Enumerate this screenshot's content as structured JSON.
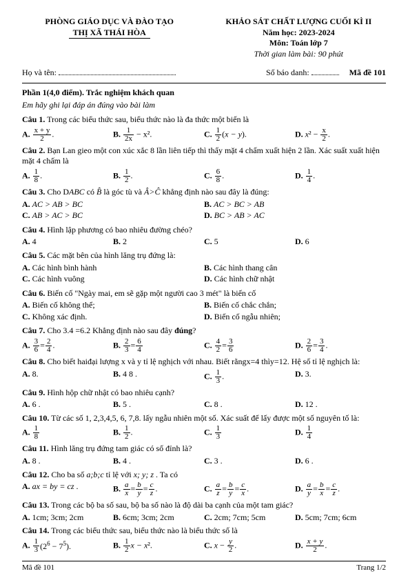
{
  "header": {
    "left1": "PHÒNG GIÁO DỤC VÀ ĐÀO TẠO",
    "left2": "THỊ XÃ THÁI HÒA",
    "right1": "KHẢO SÁT CHẤT LƯỢNG  CUỐI KÌ II",
    "right2": "Năm học: 2023-2024",
    "right3": "Môn: Toán lớp 7",
    "right4": "Thời gian làm bài: 90 phút"
  },
  "info": {
    "name_label": "Họ và tên:",
    "sbd_label": "Số báo danh:",
    "made_label": "Mã đề 101"
  },
  "section": {
    "title": "Phần 1(4,0 điểm). Trắc nghiệm khách quan",
    "sub": "Em hãy ghi lại đáp án đúng vào bài làm"
  },
  "q1": {
    "text": "Câu 1. Trong các biểu thức sau, biểu thức nào là đa thức một biến là",
    "a_prefix": "A.",
    "b_prefix": "B.",
    "c_prefix": "C.",
    "d_prefix": "D.",
    "a": {
      "n": "x + y",
      "d": "2"
    },
    "b": {
      "n": "1",
      "d": "2x",
      "suffix": " − x²."
    },
    "c": {
      "n": "1",
      "d": "2"
    },
    "d": {
      "n": "x",
      "d": "2"
    }
  },
  "q2": {
    "text": "Câu 2. Bạn Lan gieo một con xúc xắc 8 lần liên tiếp thì thấy mặt  4 chấm xuất hiện 2 lần. Xác suất  xuất hiện mặt  4  chấm là",
    "a": {
      "n": "1",
      "d": "8"
    },
    "b": {
      "n": "1",
      "d": "2"
    },
    "c": {
      "n": "6",
      "d": "8"
    },
    "d": {
      "n": "1",
      "d": "4"
    }
  },
  "q3": {
    "text_prefix": "Câu 3. Cho D",
    "text_mid": "ABC có ",
    "text_b": "B̂",
    "text_mid2": " là góc tù và ",
    "text_ac": "Â>Ĉ",
    "text_suffix": " khẳng định nào sau đây là đúng:",
    "a": "A. AC > AB > BC",
    "b": "B. AC > BC > AB",
    "c": "C. AB > AC > BC",
    "d": "D. BC > AB > AC"
  },
  "q4": {
    "text": "Câu 4. Hình lập phương có bao nhiêu đường chéo?",
    "a": "A. 4",
    "b": "B. 2",
    "c": "C. 5",
    "d": "D. 6"
  },
  "q5": {
    "text": "Câu 5. Các mặt bên của hình lăng trụ đứng là:",
    "a": "A. Các hình bình hành",
    "b": "B. Các hình thang cân",
    "c": "C. Các hình vuông",
    "d": "D. Các hình chữ nhật"
  },
  "q6": {
    "text": "Câu 6. Biến cố \"Ngày mai, em sẽ gặp một người cao 3 mét\" là biến cố",
    "a": "A. Biến cố không thể;",
    "b": "B. Biến cố chắc chắn;",
    "c": "C. Không xác định.",
    "d": "D. Biến cố ngẫu nhiên;"
  },
  "q7": {
    "text": "Câu 7. Cho  3.4 =6.2  Khẳng định nào sau đây đúng?",
    "a": {
      "l": "3",
      "ld": "6",
      "r": "2",
      "rd": "4"
    },
    "b": {
      "l": "2",
      "ld": "3",
      "r": "6",
      "rd": "4"
    },
    "c": {
      "l": "4",
      "ld": "2",
      "r": "3",
      "rd": "6"
    },
    "d": {
      "l": "2",
      "ld": "6",
      "r": "3",
      "rd": "4"
    }
  },
  "q8": {
    "text": "Câu 8. Cho biết haiđại lượng x và y tỉ lệ nghịch với nhau. Biết rằngx=4  thìy=12. Hệ số tỉ lệ nghịch là:",
    "a": "A. 8.",
    "b": "B. 4 8 .",
    "c": {
      "n": "1",
      "d": "3"
    },
    "d": "D. 3."
  },
  "q9": {
    "text": "Câu 9. Hình hộp chữ nhật có bao nhiêu cạnh?",
    "a": "A. 6 .",
    "b": "B. 5 .",
    "c": "C.  8 .",
    "d": "D. 12 ."
  },
  "q10": {
    "text": "Câu 10. Từ các  số 1, 2,3,4,5, 6, 7,8. lấy ngẫu nhiên một số. Xác suất để lấy được một số nguyên tố là:",
    "a": {
      "n": "1",
      "d": "8"
    },
    "b": {
      "n": "1",
      "d": "2"
    },
    "c": {
      "n": "1",
      "d": "3"
    },
    "d": {
      "n": "1",
      "d": "4"
    }
  },
  "q11": {
    "text": "Câu 11. Hình lăng trụ đứng tam giác có số đỉnh là?",
    "a": "A. 8 .",
    "b": "B. 4 .",
    "c": "C. 3 .",
    "d": "D. 6 ."
  },
  "q12": {
    "text": "Câu 12. Cho ba số  a;b;c  tỉ lệ với  x; y; z . Ta có",
    "a": "A.  ax = by = cz .",
    "b_prefix": "B.  ",
    "c_prefix": "C.  ",
    "d_prefix": "D.  "
  },
  "q13": {
    "text": "Câu 13. Trong các bộ ba số sau, bộ ba số nào là độ dài ba cạnh của một tam giác?",
    "a": "A. 1cm; 3cm; 2cm",
    "b": "B. 6cm; 3cm; 2cm",
    "c": "C. 2cm; 7cm; 5cm",
    "d": "D. 5cm; 7cm; 6cm"
  },
  "q14": {
    "text": "Câu 14. Trong các biểu thức sau, biểu thức nào là biểu thức số là",
    "a_prefix": "A.  ",
    "b_prefix": "B.  ",
    "c_prefix": "C.  ",
    "d_prefix": "D.  "
  },
  "footer": {
    "left": "Mã đề 101",
    "right": "Trang 1/2"
  }
}
